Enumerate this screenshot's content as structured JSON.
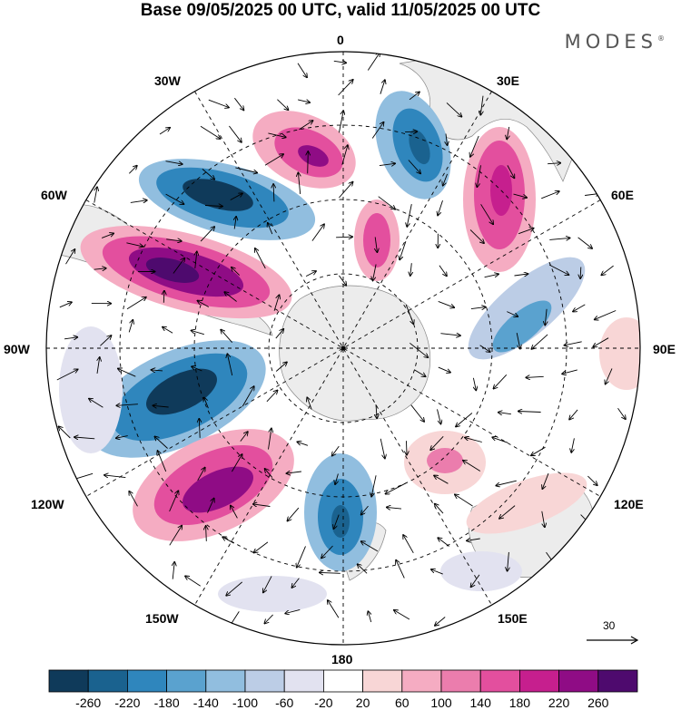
{
  "title": "Base 09/05/2025 00 UTC, valid 11/05/2025 00 UTC",
  "brand": "MODES",
  "longitude_labels": {
    "top": "0",
    "top_left": "30W",
    "top_right": "30E",
    "upper_left": "60W",
    "upper_right": "60E",
    "left": "90W",
    "right": "90E",
    "lower_left": "120W",
    "lower_right": "120E",
    "bottom_left": "150W",
    "bottom_right": "150E",
    "bottom": "180"
  },
  "vector_reference": {
    "label": "30"
  },
  "colorbar": {
    "tick_labels": [
      "-260",
      "-220",
      "-180",
      "-140",
      "-100",
      "-60",
      "-20",
      "20",
      "60",
      "100",
      "140",
      "180",
      "220",
      "260"
    ],
    "colors": [
      "#0f3a5a",
      "#1a628f",
      "#2f86bd",
      "#5aa2cf",
      "#91bedf",
      "#bccde6",
      "#e2e2f0",
      "#ffffff",
      "#f8d6d6",
      "#f5acc2",
      "#eb7dad",
      "#e34f9e",
      "#c61f8e",
      "#8f0c85",
      "#4e0a6e"
    ]
  },
  "colors": {
    "land": "#ececec",
    "grid": "#000000"
  }
}
